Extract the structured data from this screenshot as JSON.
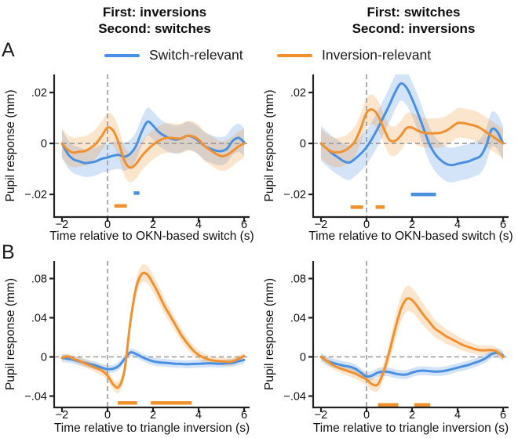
{
  "figure": {
    "panel_labels": {
      "a": "A",
      "b": "B"
    },
    "column_titles": [
      {
        "line1": "First: inversions",
        "line2": "Second: switches"
      },
      {
        "line1": "First: switches",
        "line2": "Second: inversions"
      }
    ],
    "legend": [
      {
        "label": "Switch-relevant",
        "color": "#4a90e2"
      },
      {
        "label": "Inversion-relevant",
        "color": "#f0912f"
      }
    ]
  },
  "colors": {
    "axis": "#222222",
    "dashed": "#999999",
    "text": "#111111"
  },
  "chart_data": [
    {
      "id": "a-left",
      "row": "A",
      "type": "line",
      "title": "First: inversions / Second: switches",
      "xlabel": "Time relative to OKN-based switch (s)",
      "ylabel": "Pupil response (mm)",
      "xlim": [
        -2.345,
        6.24
      ],
      "ylim": [
        -0.0289,
        0.0271
      ],
      "xticks": [
        {
          "v": -2,
          "label": "−2"
        },
        {
          "v": 0,
          "label": "0"
        },
        {
          "v": 2,
          "label": "2"
        },
        {
          "v": 4,
          "label": "4"
        },
        {
          "v": 6,
          "label": "6"
        }
      ],
      "yticks": [
        {
          "v": 0.02,
          "label": ".02"
        },
        {
          "v": 0,
          "label": "0"
        },
        {
          "v": -0.02,
          "label": "−.02"
        }
      ],
      "dashed_x": 0,
      "dashed_y": 0,
      "x": [
        -2,
        -1.75,
        -1.5,
        -1.25,
        -1,
        -0.75,
        -0.5,
        -0.25,
        0,
        0.25,
        0.5,
        0.75,
        1,
        1.25,
        1.5,
        1.75,
        2,
        2.25,
        2.5,
        2.75,
        3,
        3.25,
        3.5,
        3.75,
        4,
        4.25,
        4.5,
        4.75,
        5,
        5.25,
        5.5,
        5.75,
        6
      ],
      "series": [
        {
          "name": "Switch-relevant",
          "color": "#4a90e2",
          "band": 0.0055,
          "values": [
            0,
            -0.004,
            -0.0062,
            -0.007,
            -0.0077,
            -0.0075,
            -0.007,
            -0.006,
            -0.0055,
            -0.0048,
            -0.0045,
            -0.0052,
            -0.004,
            -0.001,
            0.0045,
            0.0085,
            0.007,
            0.0045,
            0.003,
            0.002,
            0.0015,
            0.002,
            0.003,
            0.0025,
            0.001,
            -0.001,
            -0.002,
            -0.0028,
            -0.003,
            -0.002,
            0.001,
            0.0022,
            0.0005
          ]
        },
        {
          "name": "Inversion-relevant",
          "color": "#f0912f",
          "band": 0.0058,
          "values": [
            0,
            -0.0025,
            -0.0036,
            -0.0032,
            -0.003,
            -0.0018,
            0,
            0.003,
            0.0062,
            0.005,
            0,
            -0.007,
            -0.0095,
            -0.008,
            -0.005,
            -0.0025,
            -0.0005,
            0.001,
            0.002,
            0.0022,
            0.002,
            0.002,
            0.003,
            0.0028,
            0.0015,
            -0.001,
            -0.0025,
            -0.004,
            -0.005,
            -0.0045,
            -0.003,
            -0.0012,
            0
          ]
        }
      ],
      "significance_bars": [
        {
          "color": "#f0912f",
          "y": -0.0245,
          "x1": 0.3,
          "x2": 0.85
        },
        {
          "color": "#4a90e2",
          "y": -0.0195,
          "x1": 1.15,
          "x2": 1.4
        }
      ]
    },
    {
      "id": "a-right",
      "row": "A",
      "type": "line",
      "title": "First: switches / Second: inversions",
      "xlabel": "Time relative to OKN-based switch (s)",
      "ylabel": "Pupil response (mm)",
      "xlim": [
        -2.345,
        6.24
      ],
      "ylim": [
        -0.0289,
        0.0271
      ],
      "xticks": [
        {
          "v": -2,
          "label": "−2"
        },
        {
          "v": 0,
          "label": "0"
        },
        {
          "v": 2,
          "label": "2"
        },
        {
          "v": 4,
          "label": "4"
        },
        {
          "v": 6,
          "label": "6"
        }
      ],
      "yticks": [
        {
          "v": 0.02,
          "label": ".02"
        },
        {
          "v": 0,
          "label": "0"
        },
        {
          "v": -0.02,
          "label": "−.02"
        }
      ],
      "dashed_x": 0,
      "dashed_y": 0,
      "x": [
        -2,
        -1.75,
        -1.5,
        -1.25,
        -1,
        -0.75,
        -0.5,
        -0.25,
        0,
        0.25,
        0.5,
        0.75,
        1,
        1.25,
        1.5,
        1.75,
        2,
        2.25,
        2.5,
        2.75,
        3,
        3.25,
        3.5,
        3.75,
        4,
        4.25,
        4.5,
        4.75,
        5,
        5.25,
        5.5,
        5.75,
        6
      ],
      "series": [
        {
          "name": "Switch-relevant",
          "color": "#4a90e2",
          "band": 0.0068,
          "values": [
            0,
            -0.002,
            -0.004,
            -0.0055,
            -0.007,
            -0.0075,
            -0.006,
            -0.004,
            -0.0015,
            0.002,
            0.006,
            0.0105,
            0.015,
            0.02,
            0.0235,
            0.022,
            0.0175,
            0.012,
            0.006,
            0,
            -0.004,
            -0.0065,
            -0.008,
            -0.0085,
            -0.008,
            -0.0075,
            -0.007,
            -0.006,
            -0.005,
            -0.001,
            0.0055,
            0.0045,
            0
          ]
        },
        {
          "name": "Inversion-relevant",
          "color": "#f0912f",
          "band": 0.0058,
          "values": [
            0,
            -0.002,
            -0.0033,
            -0.0035,
            -0.003,
            -0.0015,
            0.001,
            0.006,
            0.012,
            0.0133,
            0.011,
            0.006,
            0.0015,
            0.001,
            0.003,
            0.006,
            0.0062,
            0.005,
            0.0042,
            0.004,
            0.004,
            0.0042,
            0.005,
            0.0065,
            0.008,
            0.008,
            0.0075,
            0.007,
            0.006,
            0.0045,
            0.003,
            0.0015,
            0
          ]
        }
      ],
      "significance_bars": [
        {
          "color": "#f0912f",
          "y": -0.025,
          "x1": -0.7,
          "x2": -0.15
        },
        {
          "color": "#f0912f",
          "y": -0.025,
          "x1": 0.4,
          "x2": 0.8
        },
        {
          "color": "#4a90e2",
          "y": -0.02,
          "x1": 1.95,
          "x2": 3.05
        }
      ]
    },
    {
      "id": "b-left",
      "row": "B",
      "type": "line",
      "title": "First: inversions / Second: switches",
      "xlabel": "Time relative to triangle inversion (s)",
      "ylabel": "Pupil response (mm)",
      "xlim": [
        -2.345,
        6.24
      ],
      "ylim": [
        -0.0516,
        0.098
      ],
      "xticks": [
        {
          "v": -2,
          "label": "−2"
        },
        {
          "v": 0,
          "label": "0"
        },
        {
          "v": 2,
          "label": "2"
        },
        {
          "v": 4,
          "label": "4"
        },
        {
          "v": 6,
          "label": "6"
        }
      ],
      "yticks": [
        {
          "v": 0.08,
          "label": ".08"
        },
        {
          "v": 0.04,
          "label": ".04"
        },
        {
          "v": 0,
          "label": "0"
        },
        {
          "v": -0.04,
          "label": "−.04"
        }
      ],
      "dashed_x": 0,
      "dashed_y": 0,
      "x": [
        -2,
        -1.75,
        -1.5,
        -1.25,
        -1,
        -0.75,
        -0.5,
        -0.25,
        0,
        0.25,
        0.5,
        0.75,
        1,
        1.25,
        1.5,
        1.75,
        2,
        2.25,
        2.5,
        2.75,
        3,
        3.25,
        3.5,
        3.75,
        4,
        4.25,
        4.5,
        4.75,
        5,
        5.25,
        5.5,
        5.75,
        6
      ],
      "series": [
        {
          "name": "Switch-relevant",
          "color": "#4a90e2",
          "band": 0.004,
          "values": [
            -0.001,
            -0.002,
            -0.003,
            -0.0045,
            -0.006,
            -0.0075,
            -0.009,
            -0.011,
            -0.0125,
            -0.012,
            -0.009,
            -0.002,
            0.0045,
            0.003,
            0,
            -0.0025,
            -0.0045,
            -0.0055,
            -0.006,
            -0.0065,
            -0.007,
            -0.0072,
            -0.0075,
            -0.0072,
            -0.007,
            -0.0068,
            -0.0065,
            -0.0068,
            -0.007,
            -0.0065,
            -0.006,
            -0.0045,
            -0.003
          ]
        },
        {
          "name": "Inversion-relevant",
          "color": "#f0912f",
          "band": [
            0.003,
            0.003,
            0.003,
            0.0035,
            0.004,
            0.004,
            0.0045,
            0.005,
            0.005,
            0.0055,
            0.006,
            0.0065,
            0.0075,
            0.0085,
            0.009,
            0.009,
            0.0088,
            0.0085,
            0.008,
            0.0075,
            0.007,
            0.0065,
            0.006,
            0.0055,
            0.005,
            0.0045,
            0.004,
            0.004,
            0.004,
            0.004,
            0.004,
            0.0035,
            0.0035
          ],
          "values": [
            -0.001,
            0.0005,
            -0.002,
            -0.004,
            -0.0065,
            -0.009,
            -0.0115,
            -0.014,
            -0.019,
            -0.028,
            -0.0305,
            -0.013,
            0.035,
            0.07,
            0.0845,
            0.084,
            0.075,
            0.064,
            0.052,
            0.042,
            0.032,
            0.022,
            0.014,
            0.007,
            0.002,
            -0.001,
            -0.003,
            -0.004,
            -0.0045,
            -0.005,
            -0.0045,
            -0.002,
            0.001
          ]
        }
      ],
      "significance_bars": [
        {
          "color": "#f0912f",
          "y": -0.047,
          "x1": 0.45,
          "x2": 1.3
        },
        {
          "color": "#f0912f",
          "y": -0.047,
          "x1": 1.9,
          "x2": 3.7
        }
      ]
    },
    {
      "id": "b-right",
      "row": "B",
      "type": "line",
      "title": "First: switches / Second: inversions",
      "xlabel": "Time relative to triangle inversion (s)",
      "ylabel": "Pupil response (mm)",
      "xlim": [
        -2.345,
        6.24
      ],
      "ylim": [
        -0.0516,
        0.098
      ],
      "xticks": [
        {
          "v": -2,
          "label": "−2"
        },
        {
          "v": 0,
          "label": "0"
        },
        {
          "v": 2,
          "label": "2"
        },
        {
          "v": 4,
          "label": "4"
        },
        {
          "v": 6,
          "label": "6"
        }
      ],
      "yticks": [
        {
          "v": 0.08,
          "label": ".08"
        },
        {
          "v": 0.04,
          "label": ".04"
        },
        {
          "v": 0,
          "label": "0"
        },
        {
          "v": -0.04,
          "label": "−.04"
        }
      ],
      "dashed_x": 0,
      "dashed_y": 0,
      "x": [
        -2,
        -1.75,
        -1.5,
        -1.25,
        -1,
        -0.75,
        -0.5,
        -0.25,
        0,
        0.25,
        0.5,
        0.75,
        1,
        1.25,
        1.5,
        1.75,
        2,
        2.25,
        2.5,
        2.75,
        3,
        3.25,
        3.5,
        3.75,
        4,
        4.25,
        4.5,
        4.75,
        5,
        5.25,
        5.5,
        5.75,
        6
      ],
      "series": [
        {
          "name": "Switch-relevant",
          "color": "#4a90e2",
          "band": 0.0045,
          "values": [
            0,
            -0.004,
            -0.006,
            -0.0075,
            -0.009,
            -0.01,
            -0.012,
            -0.016,
            -0.02,
            -0.019,
            -0.016,
            -0.015,
            -0.0155,
            -0.017,
            -0.018,
            -0.018,
            -0.016,
            -0.0145,
            -0.014,
            -0.0145,
            -0.015,
            -0.0148,
            -0.014,
            -0.0125,
            -0.011,
            -0.0095,
            -0.008,
            -0.006,
            -0.004,
            -0.001,
            0.003,
            0.004,
            0.0015
          ]
        },
        {
          "name": "Inversion-relevant",
          "color": "#f0912f",
          "band": [
            0.003,
            0.0035,
            0.004,
            0.004,
            0.0045,
            0.005,
            0.005,
            0.0055,
            0.006,
            0.0065,
            0.007,
            0.008,
            0.01,
            0.012,
            0.013,
            0.013,
            0.0125,
            0.012,
            0.011,
            0.01,
            0.009,
            0.008,
            0.0075,
            0.007,
            0.0065,
            0.006,
            0.0055,
            0.005,
            0.005,
            0.0045,
            0.0045,
            0.004,
            0.004
          ],
          "values": [
            0,
            -0.004,
            -0.008,
            -0.011,
            -0.013,
            -0.015,
            -0.017,
            -0.02,
            -0.023,
            -0.028,
            -0.028,
            -0.015,
            0.005,
            0.028,
            0.048,
            0.059,
            0.058,
            0.051,
            0.043,
            0.036,
            0.029,
            0.025,
            0.021,
            0.018,
            0.015,
            0.012,
            0.01,
            0.008,
            0.0068,
            0.0068,
            0.007,
            0.005,
            0
          ]
        }
      ],
      "significance_bars": [
        {
          "color": "#f0912f",
          "y": -0.049,
          "x1": 0.5,
          "x2": 1.4
        },
        {
          "color": "#f0912f",
          "y": -0.049,
          "x1": 2.1,
          "x2": 2.8
        }
      ]
    }
  ]
}
